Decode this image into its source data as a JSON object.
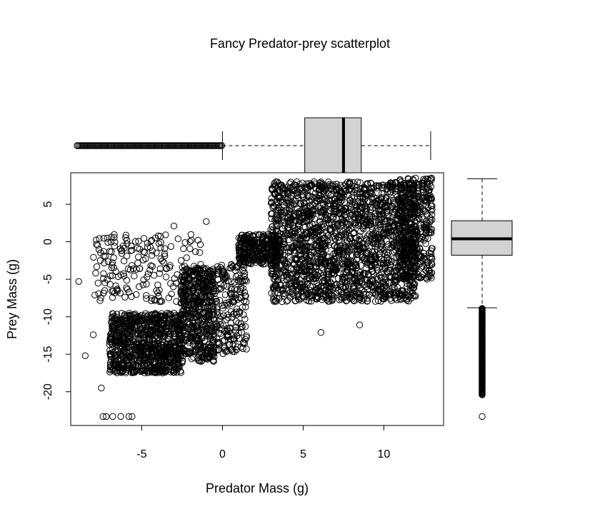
{
  "chart_data": {
    "type": "scatter",
    "title": "Fancy Predator-prey scatterplot",
    "xlabel": "Predator Mass (g)",
    "ylabel": "Prey Mass (g)",
    "xlim": [
      -9.4,
      13.7
    ],
    "ylim": [
      -24.5,
      9.2
    ],
    "x_ticks": [
      -5,
      0,
      5,
      10
    ],
    "y_ticks": [
      5,
      0,
      -5,
      -10,
      -15,
      -20
    ],
    "grid": false,
    "legend": "none",
    "marker": "open-circle",
    "series": [
      {
        "values": "dense cloud",
        "clusters": [
          {
            "x_range": [
              -7.0,
              -2.5
            ],
            "y_range": [
              -17.5,
              -9.5
            ],
            "count": 900
          },
          {
            "x_range": [
              -2.6,
              -0.5
            ],
            "y_range": [
              -16.0,
              -3.5
            ],
            "count": 500
          },
          {
            "x_range": [
              -8.0,
              -1.0
            ],
            "y_range": [
              -8.0,
              1.0
            ],
            "count": 200
          },
          {
            "x_range": [
              -0.5,
              1.5
            ],
            "y_range": [
              -15.0,
              -3.0
            ],
            "count": 200
          },
          {
            "x_range": [
              1.0,
              3.5
            ],
            "y_range": [
              -3.0,
              1.0
            ],
            "count": 300
          },
          {
            "x_range": [
              3.0,
              12.0
            ],
            "y_range": [
              -8.0,
              8.0
            ],
            "count": 2000
          },
          {
            "x_range": [
              11.0,
              13.0
            ],
            "y_range": [
              -5.0,
              8.5
            ],
            "count": 400
          }
        ],
        "outliers": [
          {
            "x": -8.9,
            "y": -5.3
          },
          {
            "x": -7.4,
            "y": -23.3
          },
          {
            "x": -7.2,
            "y": -23.3
          },
          {
            "x": -6.8,
            "y": -23.3
          },
          {
            "x": -6.3,
            "y": -23.3
          },
          {
            "x": -5.8,
            "y": -23.3
          },
          {
            "x": -5.6,
            "y": -23.3
          },
          {
            "x": 8.5,
            "y": -11.1
          },
          {
            "x": 6.1,
            "y": -12.1
          },
          {
            "x": -1.0,
            "y": 2.7
          },
          {
            "x": -3.0,
            "y": 2.1
          },
          {
            "x": -8.5,
            "y": -15.2
          },
          {
            "x": -8.0,
            "y": -12.4
          },
          {
            "x": -7.5,
            "y": -19.5
          }
        ]
      }
    ],
    "marginal_x_boxplot": {
      "min": 0.0,
      "q1": 5.1,
      "median": 7.5,
      "q3": 8.6,
      "max": 12.9,
      "outlier_range": [
        -9.0,
        0.0
      ]
    },
    "marginal_y_boxplot": {
      "min": -8.8,
      "q1": -1.8,
      "median": 0.4,
      "q3": 2.8,
      "max": 8.4,
      "outlier_range": [
        -23.3,
        -8.9
      ]
    }
  }
}
